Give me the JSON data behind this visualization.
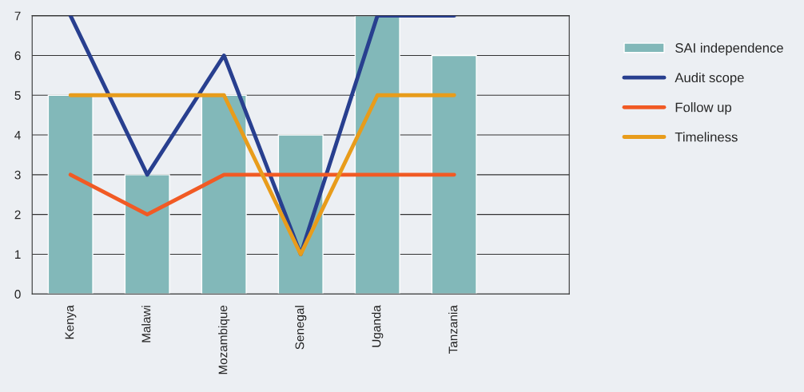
{
  "chart_data": {
    "type": "bar",
    "categories": [
      "Kenya",
      "Malawi",
      "Mozambique",
      "Senegal",
      "Uganda",
      "Tanzania",
      null
    ],
    "series": [
      {
        "name": "SAI independence",
        "color": "#82b8b9",
        "values": [
          5,
          3,
          5,
          4,
          7,
          6,
          null
        ]
      },
      {
        "name": "Audit scope",
        "type": "line",
        "color": "#283f8f",
        "values": [
          7,
          3,
          6,
          1,
          7,
          7,
          null
        ]
      },
      {
        "name": "Follow up",
        "type": "line",
        "color": "#f15a24",
        "values": [
          3,
          2,
          3,
          3,
          3,
          3,
          null
        ]
      },
      {
        "name": "Timeliness",
        "type": "line",
        "color": "#e89c1b",
        "values": [
          5,
          5,
          5,
          1,
          5,
          5,
          null
        ]
      }
    ],
    "ylim": [
      0,
      7
    ],
    "yticks": [
      0,
      1,
      2,
      3,
      4,
      5,
      6,
      7
    ],
    "grid": "y",
    "legend": "right",
    "marker": "none",
    "line_style": "solid"
  }
}
